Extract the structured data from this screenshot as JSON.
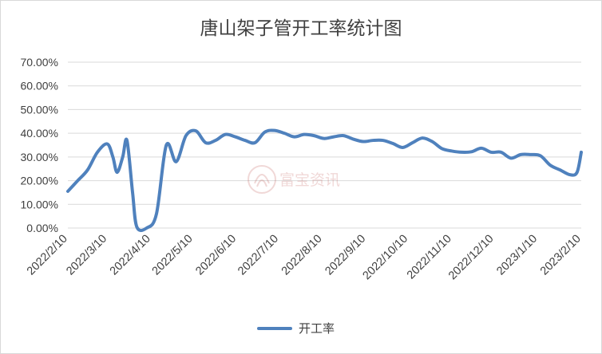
{
  "chart_data": {
    "type": "line",
    "title": "唐山架子管开工率统计图",
    "xlabel": "",
    "ylabel": "",
    "ylim": [
      0,
      0.7
    ],
    "y_ticks": [
      "0.00%",
      "10.00%",
      "20.00%",
      "30.00%",
      "40.00%",
      "50.00%",
      "60.00%",
      "70.00%"
    ],
    "x_tick_labels": [
      "2022/2/10",
      "2022/3/10",
      "2022/4/10",
      "2022/5/10",
      "2022/6/10",
      "2022/7/10",
      "2022/8/10",
      "2022/9/10",
      "2022/10/10",
      "2022/11/10",
      "2022/12/10",
      "2023/1/10",
      "2023/2/10"
    ],
    "grid": true,
    "legend_position": "bottom",
    "series": [
      {
        "name": "开工率",
        "color": "#4f81bd",
        "points": [
          [
            "2022-02-10",
            0.155
          ],
          [
            "2022-02-17",
            0.2
          ],
          [
            "2022-02-24",
            0.245
          ],
          [
            "2022-03-03",
            0.32
          ],
          [
            "2022-03-10",
            0.355
          ],
          [
            "2022-03-14",
            0.3
          ],
          [
            "2022-03-17",
            0.235
          ],
          [
            "2022-03-21",
            0.3
          ],
          [
            "2022-03-24",
            0.37
          ],
          [
            "2022-03-28",
            0.15
          ],
          [
            "2022-03-31",
            0.005
          ],
          [
            "2022-04-07",
            0.0
          ],
          [
            "2022-04-14",
            0.06
          ],
          [
            "2022-04-21",
            0.35
          ],
          [
            "2022-04-28",
            0.28
          ],
          [
            "2022-05-05",
            0.39
          ],
          [
            "2022-05-12",
            0.41
          ],
          [
            "2022-05-19",
            0.36
          ],
          [
            "2022-05-26",
            0.37
          ],
          [
            "2022-06-02",
            0.395
          ],
          [
            "2022-06-09",
            0.385
          ],
          [
            "2022-06-16",
            0.37
          ],
          [
            "2022-06-23",
            0.36
          ],
          [
            "2022-06-30",
            0.405
          ],
          [
            "2022-07-07",
            0.412
          ],
          [
            "2022-07-14",
            0.4
          ],
          [
            "2022-07-21",
            0.385
          ],
          [
            "2022-07-28",
            0.395
          ],
          [
            "2022-08-04",
            0.39
          ],
          [
            "2022-08-11",
            0.378
          ],
          [
            "2022-08-18",
            0.385
          ],
          [
            "2022-08-25",
            0.39
          ],
          [
            "2022-09-01",
            0.375
          ],
          [
            "2022-09-08",
            0.365
          ],
          [
            "2022-09-15",
            0.37
          ],
          [
            "2022-09-22",
            0.37
          ],
          [
            "2022-09-29",
            0.357
          ],
          [
            "2022-10-06",
            0.34
          ],
          [
            "2022-10-13",
            0.36
          ],
          [
            "2022-10-20",
            0.38
          ],
          [
            "2022-10-27",
            0.365
          ],
          [
            "2022-11-03",
            0.335
          ],
          [
            "2022-11-10",
            0.325
          ],
          [
            "2022-11-17",
            0.32
          ],
          [
            "2022-11-24",
            0.322
          ],
          [
            "2022-12-01",
            0.337
          ],
          [
            "2022-12-08",
            0.32
          ],
          [
            "2022-12-15",
            0.32
          ],
          [
            "2022-12-22",
            0.295
          ],
          [
            "2022-12-29",
            0.31
          ],
          [
            "2023-01-05",
            0.31
          ],
          [
            "2023-01-12",
            0.305
          ],
          [
            "2023-01-19",
            0.265
          ],
          [
            "2023-01-26",
            0.245
          ],
          [
            "2023-02-02",
            0.225
          ],
          [
            "2023-02-07",
            0.235
          ],
          [
            "2023-02-10",
            0.32
          ]
        ]
      }
    ]
  },
  "watermark": {
    "text": "富宝资讯",
    "icon": "fubao-logo-icon"
  }
}
